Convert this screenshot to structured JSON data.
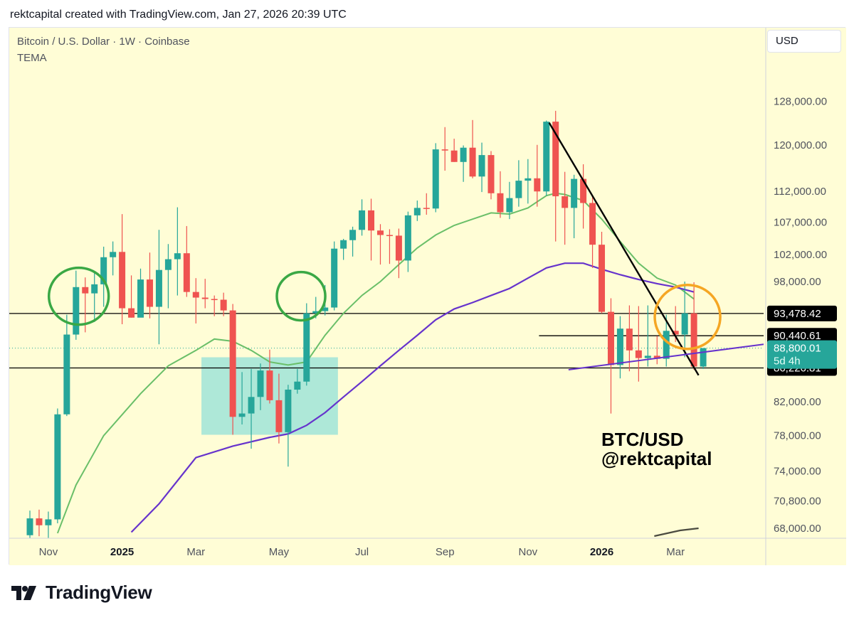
{
  "header": {
    "caption": "rektcapital created with TradingView.com, Jan 27, 2026 20:39 UTC"
  },
  "chart_header": {
    "symbol": "Bitcoin / U.S. Dollar · 1W · Coinbase",
    "indicator": "TEMA",
    "currency_button": "USD"
  },
  "watermark": {
    "line1": "BTC/USD",
    "line2": "@rektcapital"
  },
  "footer": {
    "brand": "TradingView",
    "logo_icon": "tradingview-logo-icon"
  },
  "colors": {
    "background": "#fffdd6",
    "bull": "#26a69a",
    "bear": "#ef5350",
    "ema_green": "#6abf69",
    "ema_purple": "#6633cc",
    "zone": "#aee8d8",
    "circle_green": "#3aa845",
    "circle_orange": "#f5a623",
    "current_price_bg": "#26a69a"
  },
  "chart_data": {
    "type": "candlestick",
    "title": "Bitcoin / U.S. Dollar · 1W · Coinbase",
    "scale": "log",
    "ylim": [
      67000,
      134000
    ],
    "y_ticks": [
      128000,
      120000,
      112000,
      107000,
      102000,
      98000,
      82000,
      78000,
      74000,
      70800,
      68000
    ],
    "y_tick_labels": [
      "128,000.00",
      "120,000.00",
      "112,000.00",
      "107,000.00",
      "102,000.00",
      "98,000.00",
      "82,000.00",
      "78,000.00",
      "74,000.00",
      "70,800.00",
      "68,000.00"
    ],
    "x_ticks": [
      {
        "label": "Nov",
        "i": 2,
        "bold": false
      },
      {
        "label": "2025",
        "i": 10,
        "bold": true
      },
      {
        "label": "Mar",
        "i": 18,
        "bold": false
      },
      {
        "label": "May",
        "i": 27,
        "bold": false
      },
      {
        "label": "Jul",
        "i": 36,
        "bold": false
      },
      {
        "label": "Sep",
        "i": 45,
        "bold": false
      },
      {
        "label": "Nov",
        "i": 54,
        "bold": false
      },
      {
        "label": "2026",
        "i": 62,
        "bold": true
      },
      {
        "label": "Mar",
        "i": 70,
        "bold": false
      }
    ],
    "candles": [
      {
        "i": 0,
        "o": 67300,
        "h": 69800,
        "l": 66400,
        "c": 69000
      },
      {
        "i": 1,
        "o": 69000,
        "h": 69900,
        "l": 67200,
        "c": 68300
      },
      {
        "i": 2,
        "o": 68300,
        "h": 69700,
        "l": 67000,
        "c": 68900
      },
      {
        "i": 3,
        "o": 68900,
        "h": 81200,
        "l": 68500,
        "c": 80500
      },
      {
        "i": 4,
        "o": 80500,
        "h": 93300,
        "l": 80300,
        "c": 90600
      },
      {
        "i": 5,
        "o": 90600,
        "h": 99600,
        "l": 89900,
        "c": 97200
      },
      {
        "i": 6,
        "o": 97200,
        "h": 98600,
        "l": 90900,
        "c": 96300
      },
      {
        "i": 7,
        "o": 96300,
        "h": 99400,
        "l": 92300,
        "c": 97600
      },
      {
        "i": 8,
        "o": 97600,
        "h": 103200,
        "l": 94400,
        "c": 101600
      },
      {
        "i": 9,
        "o": 101600,
        "h": 104000,
        "l": 98900,
        "c": 102400
      },
      {
        "i": 10,
        "o": 102400,
        "h": 108300,
        "l": 92000,
        "c": 94200
      },
      {
        "i": 11,
        "o": 94200,
        "h": 98900,
        "l": 92900,
        "c": 92900
      },
      {
        "i": 12,
        "o": 92900,
        "h": 99900,
        "l": 93000,
        "c": 98300
      },
      {
        "i": 13,
        "o": 98300,
        "h": 102300,
        "l": 92800,
        "c": 94400
      },
      {
        "i": 14,
        "o": 94400,
        "h": 105800,
        "l": 89300,
        "c": 99700
      },
      {
        "i": 15,
        "o": 99700,
        "h": 103600,
        "l": 94200,
        "c": 101300
      },
      {
        "i": 16,
        "o": 101300,
        "h": 109400,
        "l": 96000,
        "c": 102200
      },
      {
        "i": 17,
        "o": 102200,
        "h": 106400,
        "l": 95800,
        "c": 96500
      },
      {
        "i": 18,
        "o": 96500,
        "h": 98500,
        "l": 92100,
        "c": 95700
      },
      {
        "i": 19,
        "o": 95700,
        "h": 98400,
        "l": 94200,
        "c": 95500
      },
      {
        "i": 20,
        "o": 95500,
        "h": 96000,
        "l": 93100,
        "c": 95400
      },
      {
        "i": 21,
        "o": 95400,
        "h": 96400,
        "l": 93100,
        "c": 93900
      },
      {
        "i": 22,
        "o": 93900,
        "h": 94800,
        "l": 78100,
        "c": 80200
      },
      {
        "i": 23,
        "o": 80200,
        "h": 85700,
        "l": 79300,
        "c": 80600
      },
      {
        "i": 24,
        "o": 80600,
        "h": 86100,
        "l": 76500,
        "c": 82600
      },
      {
        "i": 25,
        "o": 82600,
        "h": 86800,
        "l": 81000,
        "c": 85900
      },
      {
        "i": 26,
        "o": 85900,
        "h": 88600,
        "l": 81800,
        "c": 82200
      },
      {
        "i": 27,
        "o": 82200,
        "h": 85500,
        "l": 77100,
        "c": 78400
      },
      {
        "i": 28,
        "o": 78400,
        "h": 84100,
        "l": 74500,
        "c": 83500
      },
      {
        "i": 29,
        "o": 83500,
        "h": 86100,
        "l": 83000,
        "c": 84500
      },
      {
        "i": 30,
        "o": 84500,
        "h": 94900,
        "l": 84000,
        "c": 93500
      },
      {
        "i": 31,
        "o": 93500,
        "h": 95800,
        "l": 92800,
        "c": 93800
      },
      {
        "i": 32,
        "o": 93800,
        "h": 97500,
        "l": 93200,
        "c": 94300
      },
      {
        "i": 33,
        "o": 94300,
        "h": 104000,
        "l": 93900,
        "c": 102900
      },
      {
        "i": 34,
        "o": 102900,
        "h": 104400,
        "l": 101200,
        "c": 104200
      },
      {
        "i": 35,
        "o": 104200,
        "h": 106300,
        "l": 101700,
        "c": 105800
      },
      {
        "i": 36,
        "o": 105800,
        "h": 110700,
        "l": 104900,
        "c": 108900
      },
      {
        "i": 37,
        "o": 108900,
        "h": 110800,
        "l": 101100,
        "c": 105700
      },
      {
        "i": 38,
        "o": 105700,
        "h": 106700,
        "l": 100500,
        "c": 105000
      },
      {
        "i": 39,
        "o": 105000,
        "h": 105900,
        "l": 100600,
        "c": 104900
      },
      {
        "i": 40,
        "o": 104900,
        "h": 106000,
        "l": 98500,
        "c": 101100
      },
      {
        "i": 41,
        "o": 101100,
        "h": 108700,
        "l": 99400,
        "c": 108100
      },
      {
        "i": 42,
        "o": 108100,
        "h": 110500,
        "l": 107200,
        "c": 109300
      },
      {
        "i": 43,
        "o": 109300,
        "h": 111700,
        "l": 108200,
        "c": 109200
      },
      {
        "i": 44,
        "o": 109200,
        "h": 120300,
        "l": 108600,
        "c": 119200
      },
      {
        "i": 45,
        "o": 119200,
        "h": 123200,
        "l": 115500,
        "c": 119000
      },
      {
        "i": 46,
        "o": 119000,
        "h": 121100,
        "l": 117000,
        "c": 117000
      },
      {
        "i": 47,
        "o": 117000,
        "h": 119900,
        "l": 113600,
        "c": 119500
      },
      {
        "i": 48,
        "o": 119500,
        "h": 124500,
        "l": 114200,
        "c": 114500
      },
      {
        "i": 49,
        "o": 114500,
        "h": 120400,
        "l": 111900,
        "c": 118200
      },
      {
        "i": 50,
        "o": 118200,
        "h": 118900,
        "l": 110700,
        "c": 111700
      },
      {
        "i": 51,
        "o": 111700,
        "h": 115400,
        "l": 107700,
        "c": 108600
      },
      {
        "i": 52,
        "o": 108600,
        "h": 113600,
        "l": 107500,
        "c": 110900
      },
      {
        "i": 53,
        "o": 110900,
        "h": 117300,
        "l": 109500,
        "c": 113800
      },
      {
        "i": 54,
        "o": 113800,
        "h": 117500,
        "l": 110000,
        "c": 114200
      },
      {
        "i": 55,
        "o": 114200,
        "h": 120000,
        "l": 109500,
        "c": 112000
      },
      {
        "i": 56,
        "o": 112000,
        "h": 124400,
        "l": 111300,
        "c": 124200
      },
      {
        "i": 57,
        "o": 124200,
        "h": 126200,
        "l": 104000,
        "c": 111200
      },
      {
        "i": 58,
        "o": 111200,
        "h": 115300,
        "l": 103500,
        "c": 109300
      },
      {
        "i": 59,
        "o": 109300,
        "h": 114800,
        "l": 104500,
        "c": 114100
      },
      {
        "i": 60,
        "o": 114100,
        "h": 116600,
        "l": 106000,
        "c": 110100
      },
      {
        "i": 61,
        "o": 110100,
        "h": 111200,
        "l": 100000,
        "c": 103500
      },
      {
        "i": 62,
        "o": 103500,
        "h": 105500,
        "l": 93500,
        "c": 93700
      },
      {
        "i": 63,
        "o": 93700,
        "h": 95600,
        "l": 80600,
        "c": 86600
      },
      {
        "i": 64,
        "o": 86600,
        "h": 93100,
        "l": 84900,
        "c": 91400
      },
      {
        "i": 65,
        "o": 91400,
        "h": 94600,
        "l": 85800,
        "c": 88500
      },
      {
        "i": 66,
        "o": 88500,
        "h": 94500,
        "l": 84500,
        "c": 87500
      },
      {
        "i": 67,
        "o": 87500,
        "h": 94600,
        "l": 86400,
        "c": 87800
      },
      {
        "i": 68,
        "o": 87800,
        "h": 90400,
        "l": 86700,
        "c": 87400
      },
      {
        "i": 69,
        "o": 87400,
        "h": 93300,
        "l": 86400,
        "c": 91100
      },
      {
        "i": 70,
        "o": 91100,
        "h": 94500,
        "l": 89600,
        "c": 90600
      },
      {
        "i": 71,
        "o": 90600,
        "h": 98000,
        "l": 87600,
        "c": 93500
      },
      {
        "i": 72,
        "o": 93500,
        "h": 97900,
        "l": 86000,
        "c": 86400
      },
      {
        "i": 73,
        "o": 86400,
        "h": 88800,
        "l": 86100,
        "c": 88800
      }
    ],
    "series": [
      {
        "name": "TEMA",
        "color": "#6abf69",
        "x": [
          3,
          5,
          8,
          12,
          15,
          18,
          20,
          22,
          24,
          26,
          28,
          30,
          32,
          34,
          36,
          38,
          40,
          42,
          44,
          46,
          48,
          50,
          52,
          54,
          56,
          57,
          58,
          60,
          62,
          64,
          66,
          68,
          70,
          71,
          72
        ],
        "y": [
          67500,
          72500,
          78000,
          83000,
          86500,
          88500,
          90000,
          89700,
          88500,
          87000,
          86600,
          87000,
          90500,
          93500,
          96000,
          98000,
          100500,
          103000,
          105000,
          106500,
          107500,
          108500,
          108300,
          109300,
          111300,
          111700,
          111500,
          110500,
          107500,
          104000,
          100700,
          98500,
          97500,
          96500,
          95500
        ]
      },
      {
        "name": "",
        "color": "#6633cc",
        "x": [
          11,
          14,
          18,
          22,
          26,
          28,
          30,
          32,
          34,
          36,
          38,
          40,
          42,
          44,
          46,
          48,
          50,
          52,
          54,
          56,
          58,
          60,
          62,
          64,
          66,
          68,
          70,
          72
        ],
        "y": [
          67600,
          70500,
          75500,
          76800,
          77800,
          78200,
          79200,
          80700,
          82600,
          84500,
          86500,
          88500,
          90500,
          92600,
          94100,
          95000,
          96000,
          97000,
          98500,
          100000,
          100700,
          100700,
          99800,
          99000,
          98300,
          97700,
          97200,
          96500
        ]
      }
    ],
    "horizontal_lines": [
      {
        "value": 93478.42,
        "label": "93,478.42"
      },
      {
        "value": 90440.61,
        "label": "90,440.61"
      },
      {
        "value": 86226.81,
        "label": "86,226.81"
      }
    ],
    "current_price": {
      "value": 88800.01,
      "label": "88,800.01",
      "countdown": "5d 4h"
    }
  }
}
